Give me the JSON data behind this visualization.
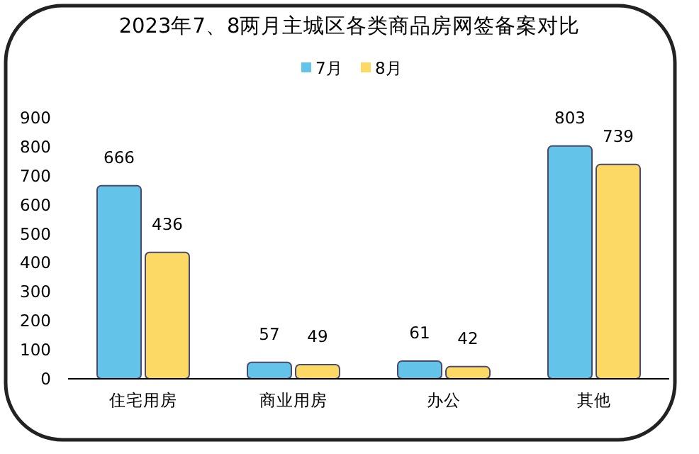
{
  "chart_data": {
    "type": "bar",
    "title": "2023年7、8两月主城区各类商品房网签备案对比",
    "categories": [
      "住宅用房",
      "商业用房",
      "办公",
      "其他"
    ],
    "series": [
      {
        "name": "7月",
        "color": "#63c3e8",
        "values": [
          666,
          57,
          61,
          803
        ]
      },
      {
        "name": "8月",
        "color": "#fcd965",
        "values": [
          436,
          49,
          42,
          739
        ]
      }
    ],
    "ylim": [
      0,
      900
    ],
    "yticks": [
      0,
      100,
      200,
      300,
      400,
      500,
      600,
      700,
      800,
      900
    ],
    "data_labels": true,
    "legend": "top",
    "grid": false
  }
}
